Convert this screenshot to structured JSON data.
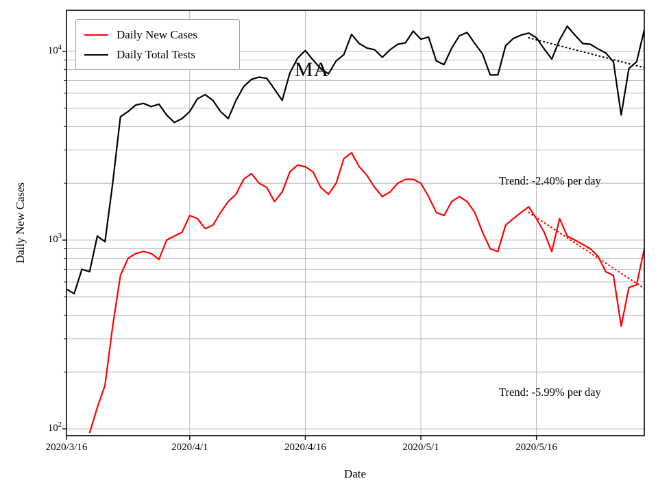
{
  "chart_data": {
    "type": "line",
    "title": "MA",
    "xlabel": "Date",
    "ylabel": "Daily New Cases",
    "yscale": "log",
    "ylim": [
      92,
      16500
    ],
    "grid": true,
    "legend_position": "upper left",
    "x": [
      "2020/3/16",
      "2020/3/17",
      "2020/3/18",
      "2020/3/19",
      "2020/3/20",
      "2020/3/21",
      "2020/3/22",
      "2020/3/23",
      "2020/3/24",
      "2020/3/25",
      "2020/3/26",
      "2020/3/27",
      "2020/3/28",
      "2020/3/29",
      "2020/3/30",
      "2020/3/31",
      "2020/4/1",
      "2020/4/2",
      "2020/4/3",
      "2020/4/4",
      "2020/4/5",
      "2020/4/6",
      "2020/4/7",
      "2020/4/8",
      "2020/4/9",
      "2020/4/10",
      "2020/4/11",
      "2020/4/12",
      "2020/4/13",
      "2020/4/14",
      "2020/4/15",
      "2020/4/16",
      "2020/4/17",
      "2020/4/18",
      "2020/4/19",
      "2020/4/20",
      "2020/4/21",
      "2020/4/22",
      "2020/4/23",
      "2020/4/24",
      "2020/4/25",
      "2020/4/26",
      "2020/4/27",
      "2020/4/28",
      "2020/4/29",
      "2020/4/30",
      "2020/5/1",
      "2020/5/2",
      "2020/5/3",
      "2020/5/4",
      "2020/5/5",
      "2020/5/6",
      "2020/5/7",
      "2020/5/8",
      "2020/5/9",
      "2020/5/10",
      "2020/5/11",
      "2020/5/12",
      "2020/5/13",
      "2020/5/14",
      "2020/5/15",
      "2020/5/16",
      "2020/5/17",
      "2020/5/18",
      "2020/5/19",
      "2020/5/20",
      "2020/5/21",
      "2020/5/22",
      "2020/5/23",
      "2020/5/24",
      "2020/5/25",
      "2020/5/26",
      "2020/5/27",
      "2020/5/28",
      "2020/5/29",
      "2020/5/30"
    ],
    "series": [
      {
        "name": "Daily New Cases",
        "color": "#ff0000",
        "values": [
          null,
          null,
          null,
          95,
          130,
          170,
          350,
          650,
          800,
          850,
          870,
          850,
          790,
          1000,
          1050,
          1100,
          1350,
          1300,
          1150,
          1200,
          1400,
          1600,
          1750,
          2100,
          2250,
          2000,
          1900,
          1600,
          1800,
          2300,
          2500,
          2450,
          2300,
          1900,
          1750,
          2000,
          2700,
          2900,
          2450,
          2200,
          1900,
          1700,
          1800,
          2000,
          2100,
          2100,
          2000,
          1700,
          1400,
          1350,
          1600,
          1700,
          1600,
          1400,
          1100,
          900,
          870,
          1200,
          1300,
          1400,
          1500,
          1300,
          1100,
          870,
          1300,
          1050,
          1000,
          950,
          900,
          820,
          680,
          650,
          350,
          560,
          580,
          900
        ]
      },
      {
        "name": "Daily Total Tests",
        "color": "#000000",
        "values": [
          550,
          520,
          700,
          680,
          1050,
          980,
          2000,
          4500,
          4800,
          5200,
          5300,
          5100,
          5250,
          4600,
          4200,
          4400,
          4800,
          5600,
          5900,
          5500,
          4800,
          4400,
          5500,
          6500,
          7100,
          7300,
          7200,
          6300,
          5500,
          7700,
          9200,
          10100,
          9000,
          8100,
          7600,
          8900,
          9600,
          12300,
          11000,
          10400,
          10200,
          9300,
          10200,
          10900,
          11100,
          12800,
          11600,
          11900,
          8900,
          8500,
          10400,
          12100,
          12600,
          11000,
          9700,
          7500,
          7500,
          10700,
          11700,
          12200,
          12500,
          11800,
          10300,
          9100,
          11500,
          13600,
          12200,
          11000,
          10900,
          10300,
          9800,
          8800,
          4600,
          8100,
          8800,
          13000
        ]
      }
    ],
    "trend_lines": [
      {
        "series": "Daily Total Tests",
        "color": "#000000",
        "rate_pct_per_day": -2.4,
        "start_index": 60,
        "start_value": 11800,
        "label": "Trend: -2.40% per day"
      },
      {
        "series": "Daily New Cases",
        "color": "#ff0000",
        "rate_pct_per_day": -5.99,
        "start_index": 60,
        "start_value": 1400,
        "label": "Trend: -5.99% per day"
      }
    ],
    "x_ticks": [
      {
        "index": 0,
        "label": "2020/3/16"
      },
      {
        "index": 16,
        "label": "2020/4/1"
      },
      {
        "index": 31,
        "label": "2020/4/16"
      },
      {
        "index": 46,
        "label": "2020/5/1"
      },
      {
        "index": 61,
        "label": "2020/5/16"
      }
    ],
    "y_ticks": [
      {
        "value": 100,
        "exp": 2
      },
      {
        "value": 1000,
        "exp": 3
      },
      {
        "value": 10000,
        "exp": 4
      }
    ]
  }
}
